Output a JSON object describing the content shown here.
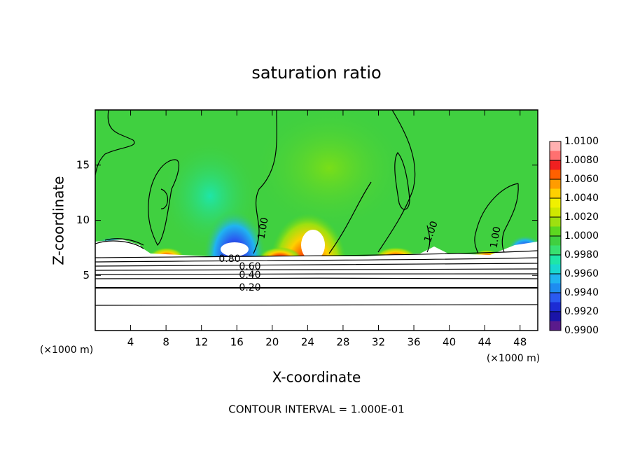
{
  "chart_data": {
    "type": "contour",
    "title": "saturation ratio",
    "x_label": "X-coordinate",
    "y_label": "Z-coordinate",
    "x_unit_left": "(×1000 m)",
    "x_unit_right": "(×1000 m)",
    "footer": "CONTOUR INTERVAL = 1.000E-01",
    "xlim": [
      0,
      50
    ],
    "ylim": [
      0,
      20
    ],
    "xticks": [
      4,
      8,
      12,
      16,
      20,
      24,
      28,
      32,
      36,
      40,
      44,
      48
    ],
    "yticks": [
      5,
      10,
      15
    ],
    "contour_labels": [
      "0.80",
      "0.60",
      "0.40",
      "0.20",
      "1.00",
      "1.00",
      "1.00"
    ],
    "colorbar": {
      "lim": [
        0.99,
        1.01
      ],
      "levels": [
        0.99,
        0.991,
        0.992,
        0.993,
        0.994,
        0.995,
        0.996,
        0.997,
        0.998,
        0.999,
        1.0,
        1.001,
        1.002,
        1.003,
        1.004,
        1.005,
        1.006,
        1.007,
        1.008,
        1.009,
        1.01
      ],
      "colors": [
        "#5a1a8c",
        "#1a14a8",
        "#1c2cd4",
        "#2a5af0",
        "#1e8cf0",
        "#20b4f0",
        "#18d8d0",
        "#1ee6a8",
        "#38e070",
        "#40d040",
        "#5cd820",
        "#9ee010",
        "#d0e800",
        "#f0f000",
        "#ffd000",
        "#ff9c00",
        "#ff6000",
        "#f02020",
        "#ff7070",
        "#ffb0b0"
      ],
      "ticks": [
        {
          "value": 0.99,
          "label": "0.9900"
        },
        {
          "value": 0.992,
          "label": "0.9920"
        },
        {
          "value": 0.994,
          "label": "0.9940"
        },
        {
          "value": 0.996,
          "label": "0.9960"
        },
        {
          "value": 0.998,
          "label": "0.9980"
        },
        {
          "value": 1.0,
          "label": "1.0000"
        },
        {
          "value": 1.002,
          "label": "1.0020"
        },
        {
          "value": 1.004,
          "label": "1.0040"
        },
        {
          "value": 1.006,
          "label": "1.0060"
        },
        {
          "value": 1.008,
          "label": "1.0080"
        },
        {
          "value": 1.01,
          "label": "1.0100"
        }
      ]
    }
  }
}
